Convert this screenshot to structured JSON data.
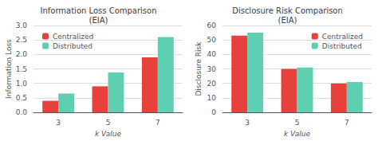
{
  "chart_data": [
    {
      "type": "bar",
      "title": "Information Loss Comparison\n(EIA)",
      "xlabel": "k Value",
      "ylabel": "Information Loss",
      "categories": [
        "3",
        "5",
        "7"
      ],
      "series": [
        {
          "name": "Centralized",
          "color": "#e8403a",
          "values": [
            0.4,
            0.9,
            1.9
          ]
        },
        {
          "name": "Distributed",
          "color": "#5ecfb0",
          "values": [
            0.65,
            1.38,
            2.6
          ]
        }
      ],
      "ylim": [
        0,
        3
      ],
      "yticks": [
        {
          "value": 0,
          "label": "0.0"
        },
        0.5,
        {
          "value": 1.0,
          "label": "1.0"
        },
        1.5,
        {
          "value": 2.0,
          "label": "2.0"
        },
        2.5,
        {
          "value": 3.0,
          "label": "3.0"
        }
      ],
      "grid": true,
      "legend": "upper left"
    },
    {
      "type": "bar",
      "title": "Disclosure Risk Comparison\n(EIA)",
      "xlabel": "k Value",
      "ylabel": "Disclosure Risk",
      "categories": [
        "3",
        "5",
        "7"
      ],
      "series": [
        {
          "name": "Centralized",
          "color": "#e8403a",
          "values": [
            53,
            30,
            20
          ]
        },
        {
          "name": "Distributed",
          "color": "#5ecfb0",
          "values": [
            55,
            31,
            21
          ]
        }
      ],
      "ylim": [
        0,
        60
      ],
      "yticks": [
        0,
        10,
        20,
        30,
        40,
        50,
        60
      ],
      "grid": true,
      "legend": "upper right"
    }
  ]
}
